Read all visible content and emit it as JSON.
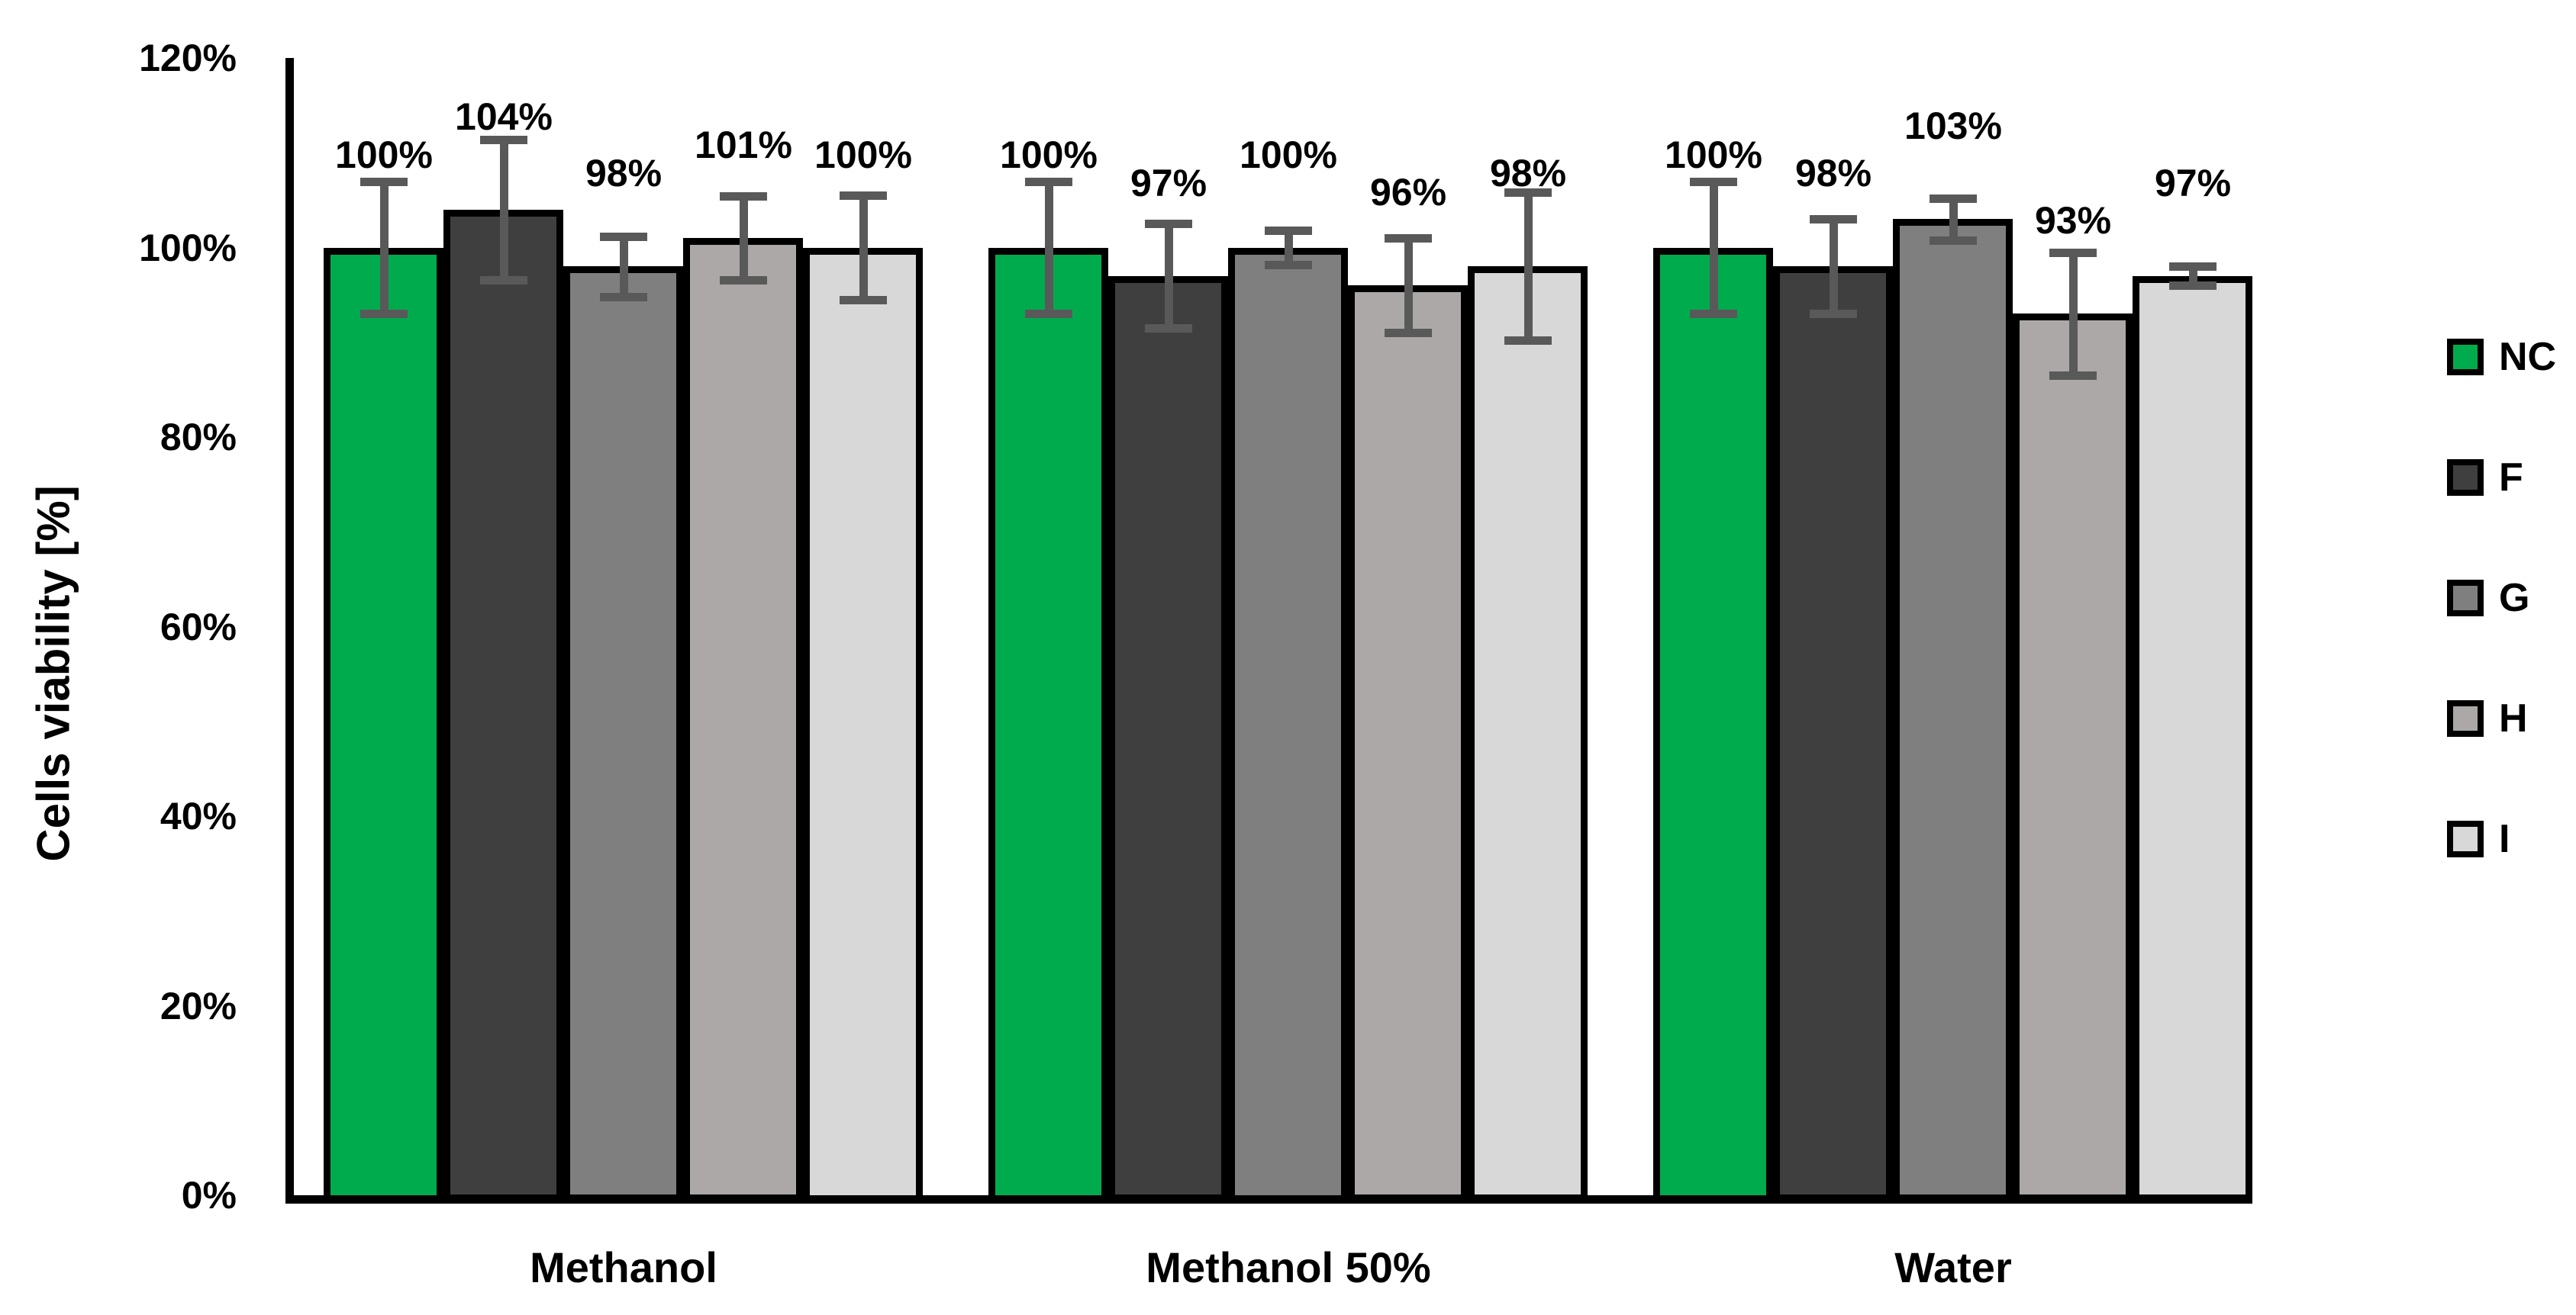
{
  "chart_data": {
    "type": "bar",
    "title": "",
    "xlabel": "",
    "ylabel": "Cells viability [%]",
    "ylim": [
      0,
      120
    ],
    "ytick_step": 20,
    "ytick_labels": [
      "0%",
      "20%",
      "40%",
      "60%",
      "80%",
      "100%",
      "120%"
    ],
    "grid": false,
    "legend_position": "right",
    "categories": [
      "Methanol",
      "Methanol 50%",
      "Water"
    ],
    "series": [
      {
        "name": "NC",
        "color": "#00AB4E",
        "values": [
          100,
          100,
          100
        ],
        "errors": [
          7.0,
          7.0,
          7.0
        ],
        "labels": [
          "100%",
          "100%",
          "100%"
        ]
      },
      {
        "name": "F",
        "color": "#3F3F3F",
        "values": [
          104,
          97,
          98
        ],
        "errors": [
          7.4,
          5.5,
          5.0
        ],
        "labels": [
          "104%",
          "97%",
          "98%"
        ]
      },
      {
        "name": "G",
        "color": "#7F7F7F",
        "values": [
          98,
          100,
          103
        ],
        "errors": [
          3.2,
          1.8,
          2.2
        ],
        "labels": [
          "98%",
          "100%",
          "103%"
        ]
      },
      {
        "name": "H",
        "color": "#ACA8A8",
        "values": [
          101,
          96,
          93
        ],
        "errors": [
          4.4,
          5.0,
          6.5
        ],
        "labels": [
          "101%",
          "96%",
          "93%"
        ]
      },
      {
        "name": "I",
        "color": "#D8D8D8",
        "values": [
          100,
          98,
          97
        ],
        "errors": [
          5.5,
          7.8,
          1.0
        ],
        "labels": [
          "100%",
          "98%",
          "97%"
        ]
      }
    ],
    "colors": {
      "axis": "#000000",
      "bar_border": "#000000",
      "error_bar": "#595959",
      "text": "#000000",
      "background": "#FFFFFF"
    }
  }
}
